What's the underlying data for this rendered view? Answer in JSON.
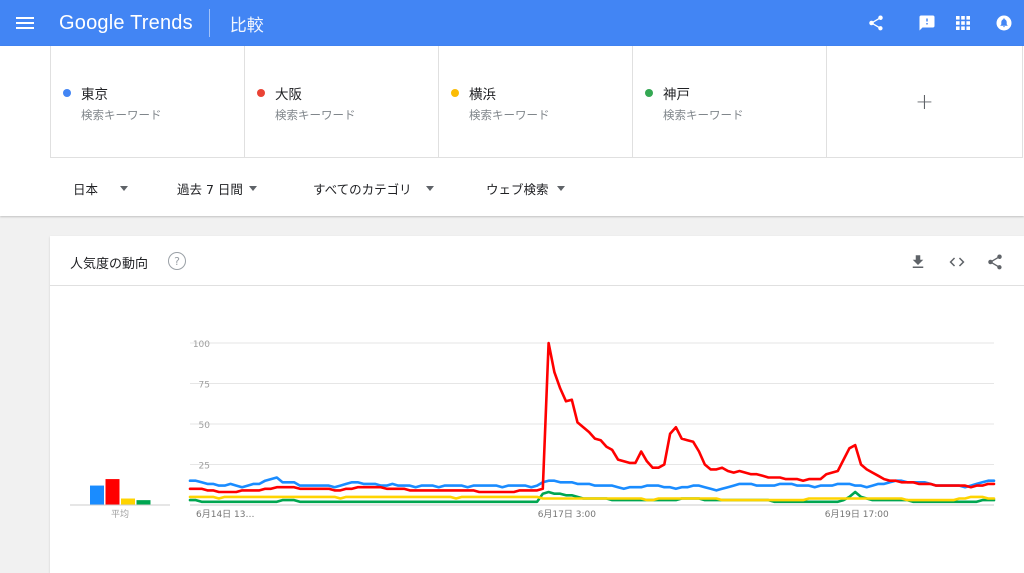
{
  "app": {
    "logo": "Google Trends",
    "page_title": "比較"
  },
  "keywords": [
    {
      "term": "東京",
      "sub": "検索キーワード",
      "color": "#4285f4"
    },
    {
      "term": "大阪",
      "sub": "検索キーワード",
      "color": "#ea4335"
    },
    {
      "term": "横浜",
      "sub": "検索キーワード",
      "color": "#fbbc04"
    },
    {
      "term": "神戸",
      "sub": "検索キーワード",
      "color": "#34a853"
    }
  ],
  "add_label": "+",
  "filters": {
    "region": "日本",
    "period": "過去 7 日間",
    "category": "すべてのカテゴリ",
    "search_type": "ウェブ検索"
  },
  "card": {
    "title": "人気度の動向",
    "help": "?"
  },
  "icons": [
    "menu-icon",
    "share-icon",
    "feedback-icon",
    "apps-icon",
    "notifications-icon",
    "help-icon",
    "download-icon",
    "embed-icon",
    "share-icon"
  ],
  "chart_data": {
    "type": "line",
    "y_ticks": [
      "100",
      "75",
      "50",
      "25"
    ],
    "ylim": [
      0,
      100
    ],
    "x_ticks": [
      "6月14日 13…",
      "6月17日 3:00",
      "6月19日 17:00"
    ],
    "average_label": "平均",
    "averages": [
      {
        "keyword": "東京",
        "value": 12,
        "color": "#1a8cff"
      },
      {
        "keyword": "大阪",
        "value": 16,
        "color": "#ff0000"
      },
      {
        "keyword": "横浜",
        "value": 4,
        "color": "#ffd400"
      },
      {
        "keyword": "神戸",
        "value": 3,
        "color": "#00a651"
      }
    ],
    "series": [
      {
        "keyword": "東京",
        "color": "#1a8cff",
        "values": [
          15,
          15,
          14,
          13,
          13,
          12,
          12,
          13,
          12,
          11,
          12,
          13,
          13,
          15,
          16,
          17,
          14,
          14,
          14,
          12,
          12,
          12,
          12,
          12,
          12,
          11,
          12,
          13,
          14,
          14,
          13,
          13,
          13,
          12,
          12,
          13,
          12,
          12,
          12,
          11,
          12,
          12,
          12,
          11,
          12,
          12,
          12,
          12,
          11,
          12,
          12,
          12,
          12,
          12,
          11,
          12,
          12,
          12,
          12,
          11,
          12,
          14,
          15,
          15,
          14,
          14,
          14,
          13,
          13,
          13,
          12,
          12,
          12,
          12,
          11,
          10,
          11,
          11,
          11,
          12,
          12,
          12,
          11,
          11,
          10,
          11,
          11,
          12,
          12,
          11,
          10,
          9,
          10,
          11,
          12,
          13,
          13,
          13,
          12,
          12,
          12,
          12,
          13,
          13,
          13,
          12,
          12,
          12,
          11,
          12,
          12,
          12,
          13,
          13,
          13,
          12,
          12,
          11,
          12,
          13,
          13,
          14,
          15,
          15,
          14,
          14,
          14,
          14,
          13,
          12,
          12,
          12,
          12,
          12,
          11,
          12,
          13,
          14,
          15,
          15
        ]
      },
      {
        "keyword": "大阪",
        "color": "#ff0000",
        "values": [
          10,
          10,
          10,
          9,
          9,
          8,
          8,
          8,
          8,
          9,
          9,
          9,
          9,
          10,
          10,
          11,
          11,
          11,
          11,
          10,
          10,
          10,
          10,
          10,
          10,
          9,
          9,
          10,
          10,
          11,
          11,
          11,
          11,
          11,
          10,
          10,
          10,
          10,
          9,
          9,
          9,
          9,
          9,
          9,
          9,
          9,
          9,
          9,
          9,
          9,
          8,
          8,
          8,
          8,
          8,
          8,
          8,
          9,
          9,
          9,
          9,
          10,
          100,
          82,
          72,
          64,
          65,
          51,
          48,
          45,
          41,
          40,
          36,
          34,
          28,
          27,
          26,
          26,
          33,
          27,
          23,
          23,
          25,
          44,
          48,
          41,
          40,
          39,
          33,
          25,
          22,
          22,
          23,
          21,
          20,
          21,
          20,
          19,
          19,
          18,
          17,
          17,
          17,
          16,
          16,
          16,
          15,
          16,
          16,
          16,
          19,
          20,
          21,
          28,
          35,
          37,
          25,
          22,
          20,
          18,
          16,
          15,
          15,
          14,
          14,
          14,
          13,
          13,
          13,
          12,
          12,
          12,
          12,
          12,
          12,
          11,
          12,
          12,
          13,
          13
        ]
      },
      {
        "keyword": "横浜",
        "color": "#ffd400",
        "values": [
          5,
          5,
          5,
          5,
          5,
          4,
          5,
          5,
          5,
          5,
          5,
          5,
          5,
          5,
          5,
          5,
          5,
          5,
          5,
          5,
          5,
          5,
          5,
          5,
          5,
          5,
          4,
          5,
          5,
          5,
          5,
          5,
          5,
          5,
          5,
          5,
          5,
          5,
          5,
          5,
          5,
          5,
          5,
          5,
          5,
          5,
          4,
          5,
          5,
          5,
          5,
          5,
          5,
          5,
          5,
          5,
          5,
          5,
          5,
          5,
          5,
          4,
          4,
          4,
          4,
          4,
          4,
          4,
          4,
          4,
          4,
          4,
          4,
          4,
          4,
          4,
          4,
          4,
          4,
          3,
          3,
          4,
          4,
          4,
          4,
          4,
          4,
          4,
          4,
          4,
          4,
          4,
          3,
          3,
          3,
          3,
          3,
          3,
          3,
          3,
          3,
          3,
          3,
          3,
          3,
          3,
          3,
          4,
          4,
          4,
          4,
          4,
          4,
          4,
          4,
          4,
          4,
          4,
          4,
          4,
          4,
          4,
          4,
          4,
          3,
          3,
          3,
          3,
          3,
          3,
          3,
          3,
          3,
          4,
          4,
          5,
          5,
          5,
          4,
          4
        ]
      },
      {
        "keyword": "神戸",
        "color": "#00a651",
        "values": [
          3,
          3,
          2,
          2,
          2,
          2,
          2,
          2,
          2,
          2,
          2,
          2,
          2,
          2,
          2,
          2,
          3,
          3,
          3,
          2,
          2,
          2,
          2,
          2,
          2,
          2,
          2,
          2,
          2,
          2,
          2,
          2,
          2,
          2,
          2,
          2,
          2,
          2,
          2,
          2,
          2,
          2,
          2,
          2,
          2,
          2,
          2,
          2,
          2,
          2,
          2,
          2,
          2,
          2,
          2,
          2,
          2,
          2,
          2,
          2,
          2,
          7,
          8,
          7,
          7,
          6,
          6,
          5,
          4,
          4,
          4,
          4,
          4,
          3,
          3,
          3,
          3,
          3,
          3,
          3,
          3,
          3,
          3,
          3,
          3,
          4,
          4,
          4,
          4,
          3,
          3,
          3,
          3,
          3,
          3,
          3,
          3,
          3,
          3,
          3,
          3,
          2,
          2,
          2,
          2,
          2,
          2,
          2,
          2,
          2,
          2,
          2,
          2,
          3,
          5,
          8,
          5,
          4,
          3,
          3,
          3,
          3,
          3,
          3,
          3,
          2,
          2,
          2,
          2,
          2,
          2,
          2,
          2,
          2,
          2,
          2,
          2,
          3,
          3,
          3
        ]
      }
    ]
  }
}
